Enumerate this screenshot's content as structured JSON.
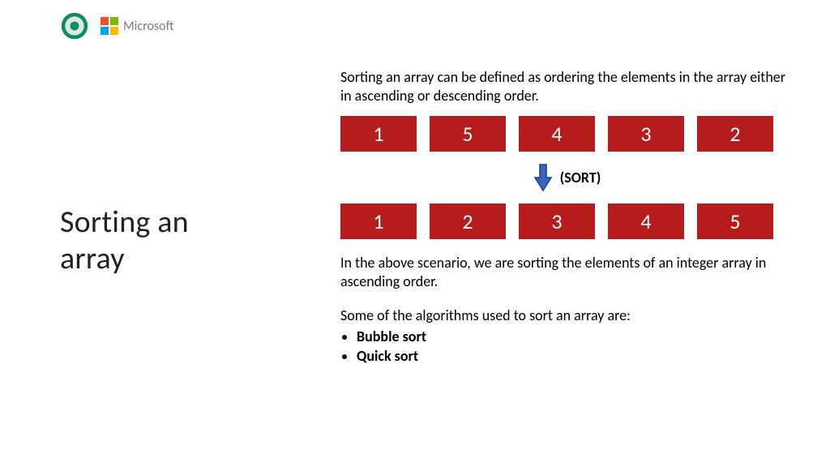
{
  "logos": {
    "crest_colors": {
      "outer": "#0d8a63",
      "inner": "#d9e9e0",
      "center": "#0d8a63"
    },
    "microsoft": {
      "text": "Microsoft",
      "tiles": [
        "#f25022",
        "#7fba00",
        "#00a4ef",
        "#ffb900"
      ]
    }
  },
  "title": "Sorting an array",
  "intro": "Sorting an array can be defined as ordering the elements in the array either in ascending or descending order.",
  "arrays": {
    "cell_bg": "#b71c1c",
    "cell_fg": "#ffffff",
    "unsorted": [
      "1",
      "5",
      "4",
      "3",
      "2"
    ],
    "sorted": [
      "1",
      "2",
      "3",
      "4",
      "5"
    ]
  },
  "sort_indicator": {
    "label": "(SORT)",
    "arrow_fill": "#3566c4",
    "arrow_stroke": "#1f3e7a"
  },
  "explain": "In the above scenario, we are sorting the elements of an integer array in ascending order.",
  "alg_intro": "Some of the algorithms used to sort an array are:",
  "algorithms": [
    "Bubble sort",
    "Quick sort"
  ]
}
